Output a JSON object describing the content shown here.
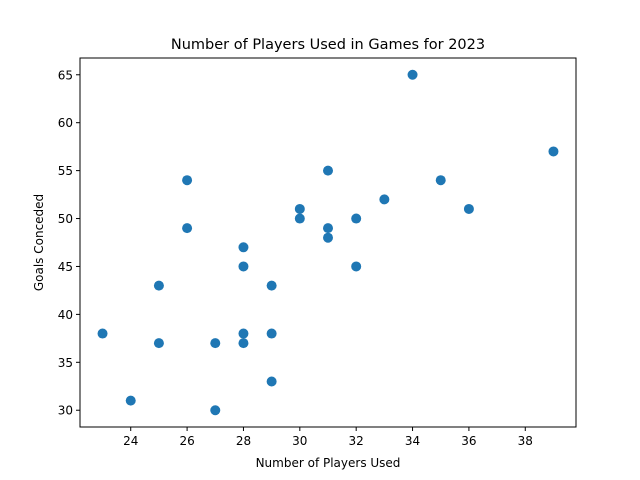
{
  "chart_data": {
    "type": "scatter",
    "title": "Number of Players Used in Games for 2023",
    "xlabel": "Number of Players Used",
    "ylabel": "Goals Conceded",
    "xlim": [
      22.2,
      39.8
    ],
    "ylim": [
      28.25,
      66.75
    ],
    "xticks": [
      24,
      26,
      28,
      30,
      32,
      34,
      36,
      38
    ],
    "yticks": [
      30,
      35,
      40,
      45,
      50,
      55,
      60,
      65
    ],
    "grid": false,
    "marker_color": "#1f77b4",
    "points": [
      {
        "x": 23,
        "y": 38
      },
      {
        "x": 24,
        "y": 31
      },
      {
        "x": 25,
        "y": 43
      },
      {
        "x": 25,
        "y": 37
      },
      {
        "x": 26,
        "y": 54
      },
      {
        "x": 26,
        "y": 49
      },
      {
        "x": 27,
        "y": 37
      },
      {
        "x": 27,
        "y": 30
      },
      {
        "x": 28,
        "y": 47
      },
      {
        "x": 28,
        "y": 45
      },
      {
        "x": 28,
        "y": 38
      },
      {
        "x": 28,
        "y": 37
      },
      {
        "x": 29,
        "y": 43
      },
      {
        "x": 29,
        "y": 38
      },
      {
        "x": 29,
        "y": 33
      },
      {
        "x": 30,
        "y": 51
      },
      {
        "x": 30,
        "y": 50
      },
      {
        "x": 31,
        "y": 55
      },
      {
        "x": 31,
        "y": 49
      },
      {
        "x": 31,
        "y": 48
      },
      {
        "x": 32,
        "y": 50
      },
      {
        "x": 32,
        "y": 45
      },
      {
        "x": 33,
        "y": 52
      },
      {
        "x": 34,
        "y": 65
      },
      {
        "x": 35,
        "y": 54
      },
      {
        "x": 36,
        "y": 51
      },
      {
        "x": 39,
        "y": 57
      }
    ]
  }
}
